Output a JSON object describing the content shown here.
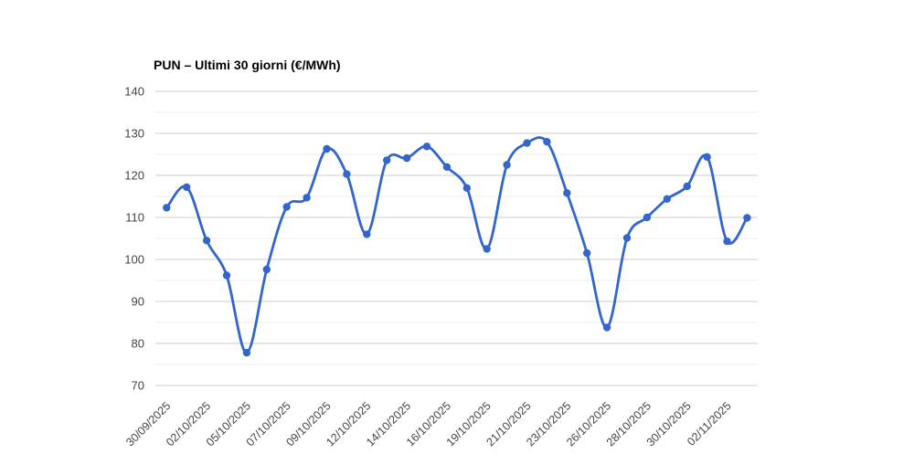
{
  "chart_data": {
    "type": "line",
    "title": "PUN – Ultimi 30 giorni (€/MWh)",
    "curve": "smooth",
    "legend": "none",
    "grid": true,
    "background_color": "#ffffff",
    "line_color": "#3366cc",
    "point_color": "#3366cc",
    "major_gridline_color": "#cccccc",
    "minor_gridline_color": "#ececec",
    "tick_label_color": "#444444",
    "ylim": [
      70,
      140
    ],
    "y_ticks": [
      70,
      80,
      90,
      100,
      110,
      120,
      130,
      140
    ],
    "y_minor_ticks": [
      75,
      85,
      95,
      105,
      115,
      125,
      135
    ],
    "num_points": 30,
    "x_tick_labels": [
      "30/09/2025",
      "02/10/2025",
      "05/10/2025",
      "07/10/2025",
      "09/10/2025",
      "12/10/2025",
      "14/10/2025",
      "16/10/2025",
      "19/10/2025",
      "21/10/2025",
      "23/10/2025",
      "26/10/2025",
      "28/10/2025",
      "30/10/2025",
      "02/11/2025"
    ],
    "x_tick_point_indices": [
      0,
      2,
      4,
      6,
      8,
      10,
      12,
      14,
      16,
      18,
      20,
      22,
      24,
      26,
      28
    ],
    "series": [
      {
        "name": "PUN",
        "values": [
          112.3,
          117.2,
          104.5,
          96.2,
          77.8,
          97.6,
          112.5,
          114.7,
          126.3,
          120.3,
          106.0,
          123.6,
          124.1,
          126.9,
          122.0,
          117.0,
          102.5,
          122.5,
          127.7,
          128.0,
          115.8,
          101.5,
          83.8,
          105.1,
          110.0,
          114.4,
          117.4,
          124.4,
          104.3,
          109.9
        ]
      }
    ]
  }
}
